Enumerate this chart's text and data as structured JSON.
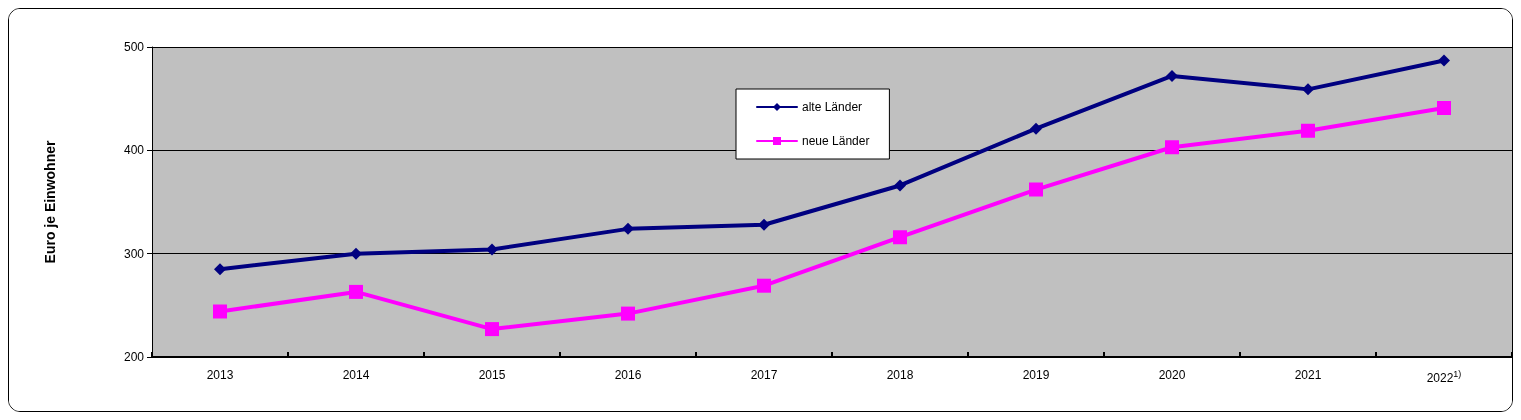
{
  "chart_data": {
    "type": "line",
    "ylabel": "Euro je Einwohner",
    "categories": [
      "2013",
      "2014",
      "2015",
      "2016",
      "2017",
      "2018",
      "2019",
      "2020",
      "2021",
      "2022$^{1)}$"
    ],
    "series": [
      {
        "name": "alte Länder",
        "color": "#000080",
        "marker": "diamond",
        "values": [
          285,
          300,
          304,
          324,
          328,
          366,
          421,
          472,
          459,
          487
        ]
      },
      {
        "name": "neue Länder",
        "color": "#ff00ff",
        "marker": "square",
        "values": [
          244,
          263,
          227,
          242,
          269,
          316,
          362,
          403,
          419,
          441
        ]
      }
    ],
    "ylim": [
      200,
      500
    ],
    "yticks": [
      200,
      300,
      400,
      500
    ],
    "grid": "y",
    "legend": "top",
    "line_style": "solid"
  }
}
